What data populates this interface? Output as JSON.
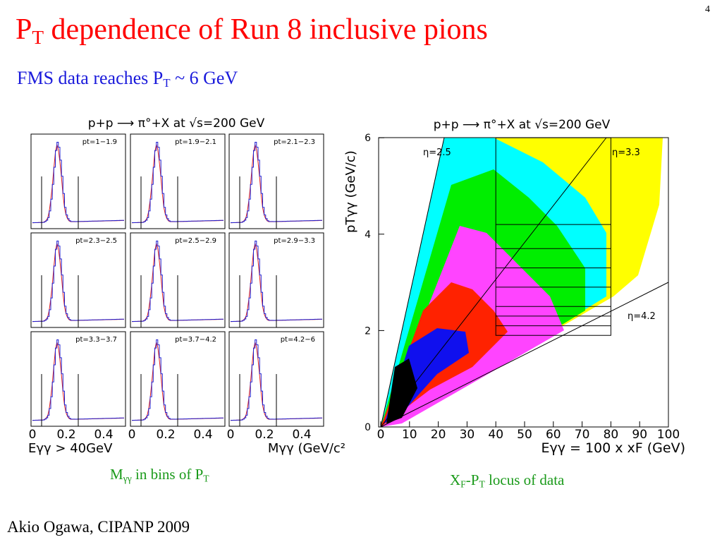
{
  "page_number": "4",
  "title": {
    "base": "P",
    "sub": "T",
    "rest": " dependence of Run 8 inclusive pions"
  },
  "subtitle": {
    "base": "FMS data reaches P",
    "sub": "T",
    "rest": " ~ 6 GeV"
  },
  "left_plot": {
    "title": "p+p ⟶ π°+X at √s=200 GeV",
    "panels": [
      "pt=1−1.9",
      "pt=1.9−2.1",
      "pt=2.1−2.3",
      "pt=2.3−2.5",
      "pt=2.5−2.9",
      "pt=2.9−3.3",
      "pt=3.3−3.7",
      "pt=3.7−4.2",
      "pt=4.2−6"
    ],
    "xticks": [
      "0",
      "0.2",
      "0.4"
    ],
    "xlabel_left": "Eγγ > 40GeV",
    "xlabel_right": "Mγγ (GeV/c²"
  },
  "right_plot": {
    "title": "p+p ⟶ π°+X at √s=200 GeV",
    "ylabel": "pTγγ (GeV/c)",
    "xlabel": "Eγγ = 100 x xF (GeV)",
    "xticks": [
      "0",
      "10",
      "20",
      "30",
      "40",
      "50",
      "60",
      "70",
      "80",
      "90",
      "100"
    ],
    "yticks": [
      "0",
      "2",
      "4",
      "6"
    ],
    "eta_labels": [
      "η=2.5",
      "η=3.3",
      "η=4.2"
    ]
  },
  "left_caption": {
    "base": "M",
    "sub": "γγ",
    "mid": " in bins of P",
    "sub2": "T"
  },
  "right_caption": {
    "base": "X",
    "sub": "F",
    "mid": "-P",
    "sub2": "T",
    "rest": " locus of data"
  },
  "footer": "Akio Ogawa, CIPANP 2009"
}
